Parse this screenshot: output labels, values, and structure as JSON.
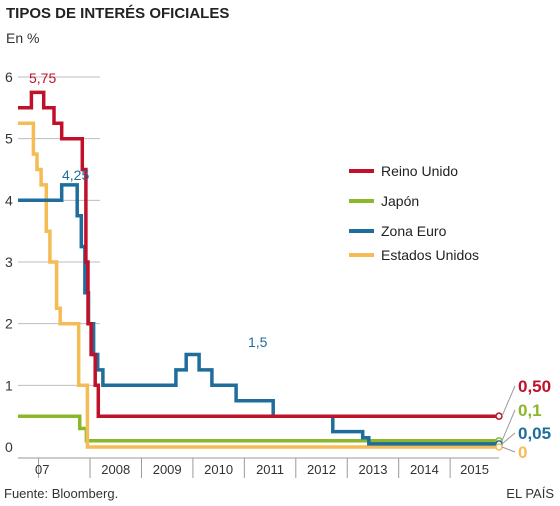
{
  "chart_data": {
    "type": "line",
    "title": "TIPOS DE INTERÉS OFICIALES",
    "subtitle": "En %",
    "source": "Fuente: Bloomberg.",
    "credit": "EL PAÍS",
    "ylim": [
      0,
      6
    ],
    "yticks": [
      "0",
      "1",
      "2",
      "3",
      "4",
      "5",
      "6"
    ],
    "xticks": [
      "07",
      "2008",
      "2009",
      "2010",
      "2011",
      "2012",
      "2013",
      "2014",
      "2015"
    ],
    "xlim": [
      2006.6,
      2015.95
    ],
    "legend_position": "right",
    "series": [
      {
        "name": "Reino Unido",
        "color": "#c0102a",
        "end_label": "0,50",
        "annotation": "5,75",
        "points": [
          [
            2006.6,
            5.5
          ],
          [
            2006.86,
            5.5
          ],
          [
            2006.86,
            5.75
          ],
          [
            2007.1,
            5.75
          ],
          [
            2007.1,
            5.5
          ],
          [
            2007.3,
            5.5
          ],
          [
            2007.3,
            5.25
          ],
          [
            2007.45,
            5.25
          ],
          [
            2007.45,
            5.0
          ],
          [
            2007.85,
            5.0
          ],
          [
            2007.85,
            4.5
          ],
          [
            2007.92,
            4.5
          ],
          [
            2007.92,
            3.0
          ],
          [
            2007.96,
            3.0
          ],
          [
            2007.96,
            2.0
          ],
          [
            2008.02,
            2.0
          ],
          [
            2008.02,
            1.5
          ],
          [
            2008.1,
            1.5
          ],
          [
            2008.1,
            1.0
          ],
          [
            2008.16,
            1.0
          ],
          [
            2008.16,
            0.5
          ],
          [
            2015.95,
            0.5
          ]
        ]
      },
      {
        "name": "Japón",
        "color": "#8ab82a",
        "end_label": "0,1",
        "points": [
          [
            2006.6,
            0.5
          ],
          [
            2007.8,
            0.5
          ],
          [
            2007.8,
            0.3
          ],
          [
            2007.93,
            0.3
          ],
          [
            2007.93,
            0.1
          ],
          [
            2015.95,
            0.1
          ]
        ]
      },
      {
        "name": "Zona Euro",
        "color": "#1f6d9c",
        "end_label": "0,05",
        "annotation": "4,25",
        "points": [
          [
            2006.6,
            4.0
          ],
          [
            2007.45,
            4.0
          ],
          [
            2007.45,
            4.25
          ],
          [
            2007.75,
            4.25
          ],
          [
            2007.75,
            3.75
          ],
          [
            2007.83,
            3.75
          ],
          [
            2007.83,
            3.25
          ],
          [
            2007.9,
            3.25
          ],
          [
            2007.9,
            2.5
          ],
          [
            2007.97,
            2.5
          ],
          [
            2007.97,
            2.0
          ],
          [
            2008.07,
            2.0
          ],
          [
            2008.07,
            1.5
          ],
          [
            2008.15,
            1.5
          ],
          [
            2008.15,
            1.25
          ],
          [
            2008.25,
            1.25
          ],
          [
            2008.25,
            1.0
          ],
          [
            2009.67,
            1.0
          ],
          [
            2009.67,
            1.25
          ],
          [
            2009.87,
            1.25
          ],
          [
            2009.87,
            1.5
          ],
          [
            2010.12,
            1.5
          ],
          [
            2010.12,
            1.25
          ],
          [
            2010.37,
            1.25
          ],
          [
            2010.37,
            1.0
          ],
          [
            2010.84,
            1.0
          ],
          [
            2010.84,
            0.75
          ],
          [
            2011.56,
            0.75
          ],
          [
            2011.56,
            0.5
          ],
          [
            2012.72,
            0.5
          ],
          [
            2012.72,
            0.25
          ],
          [
            2013.3,
            0.25
          ],
          [
            2013.3,
            0.15
          ],
          [
            2013.42,
            0.15
          ],
          [
            2013.42,
            0.05
          ],
          [
            2015.95,
            0.05
          ]
        ]
      },
      {
        "name": "Estados Unidos",
        "color": "#f5bb55",
        "end_label": "0",
        "points": [
          [
            2006.6,
            5.25
          ],
          [
            2006.9,
            5.25
          ],
          [
            2006.9,
            4.75
          ],
          [
            2006.97,
            4.75
          ],
          [
            2006.97,
            4.5
          ],
          [
            2007.05,
            4.5
          ],
          [
            2007.05,
            4.25
          ],
          [
            2007.15,
            4.25
          ],
          [
            2007.15,
            3.5
          ],
          [
            2007.22,
            3.5
          ],
          [
            2007.22,
            3.0
          ],
          [
            2007.35,
            3.0
          ],
          [
            2007.35,
            2.25
          ],
          [
            2007.42,
            2.25
          ],
          [
            2007.42,
            2.0
          ],
          [
            2007.78,
            2.0
          ],
          [
            2007.78,
            1.0
          ],
          [
            2007.95,
            1.0
          ],
          [
            2007.95,
            0.0
          ],
          [
            2015.95,
            0.0
          ]
        ]
      }
    ]
  }
}
